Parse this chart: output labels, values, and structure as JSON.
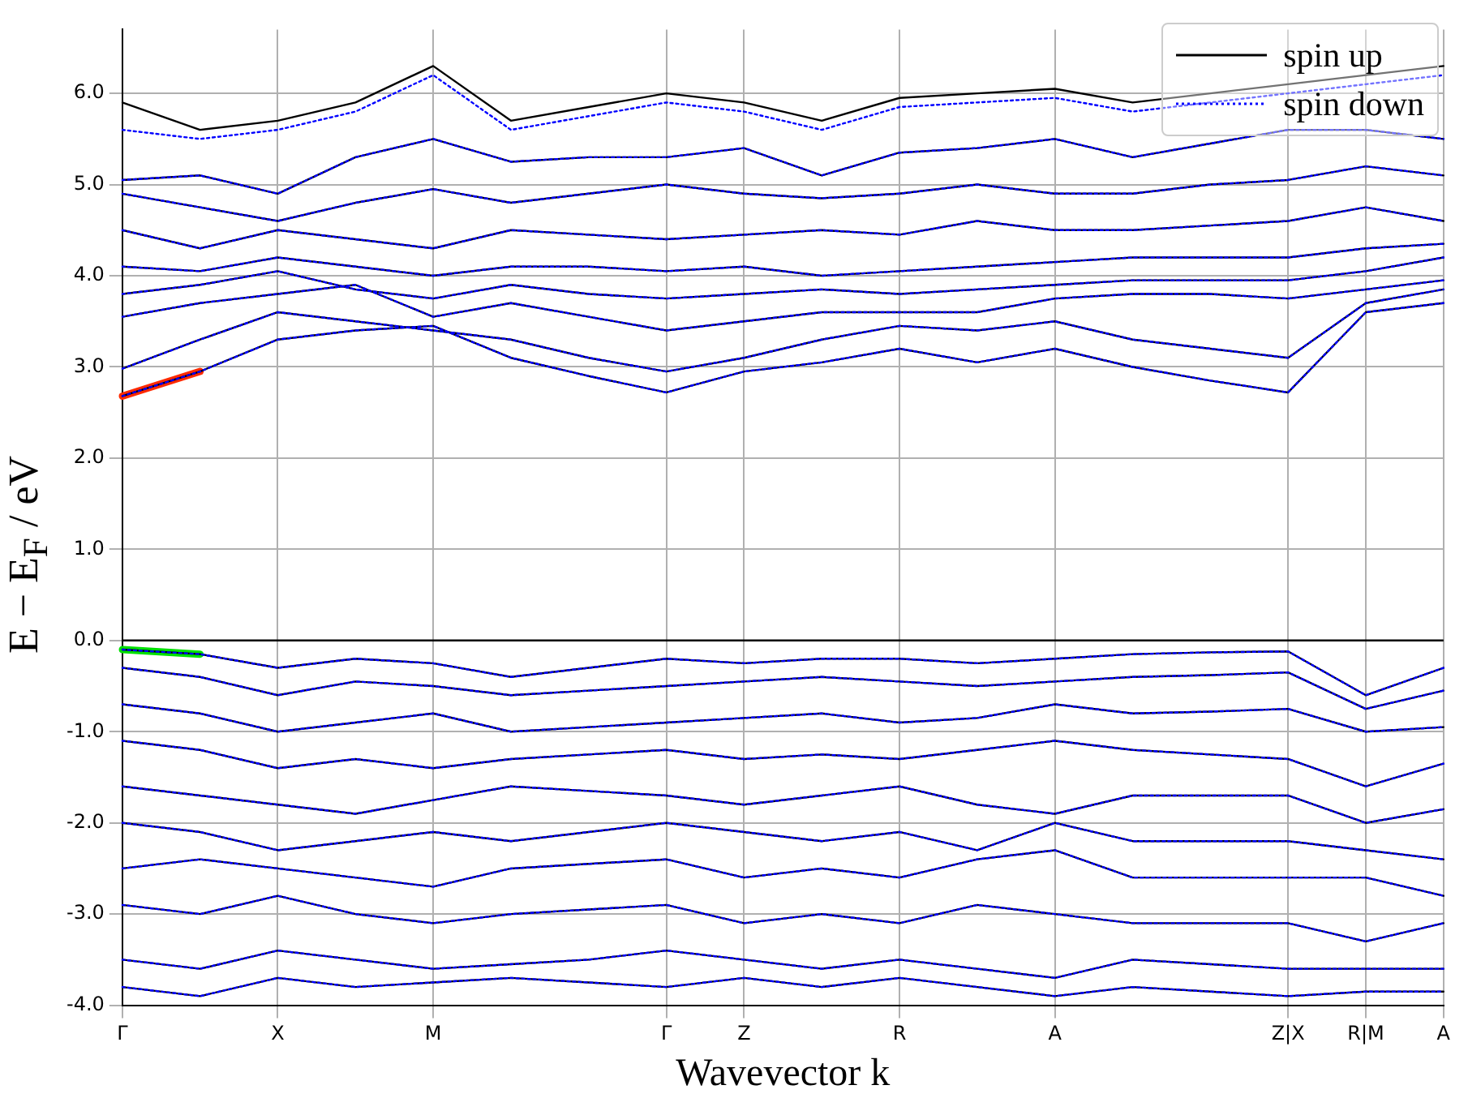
{
  "chart_data": {
    "type": "line",
    "xlabel": "Wavevector k",
    "ylabel": "E − E$_{F}$ / eV",
    "categories": [
      "Γ",
      null,
      "X",
      null,
      "M",
      null,
      null,
      "Γ",
      "Z",
      null,
      "R",
      null,
      "A",
      null,
      null,
      "Z|X",
      "R|M",
      "A"
    ],
    "ylim": [
      -4,
      6.7
    ],
    "yticks": [
      {
        "value": -4,
        "label": "-4.0"
      },
      {
        "value": -3,
        "label": "-3.0"
      },
      {
        "value": -2,
        "label": "-2.0"
      },
      {
        "value": -1,
        "label": "-1.0"
      },
      {
        "value": 0,
        "label": "0.0"
      },
      {
        "value": 1,
        "label": "1.0"
      },
      {
        "value": 2,
        "label": "2.0"
      },
      {
        "value": 3,
        "label": "3.0"
      },
      {
        "value": 4,
        "label": "4.0"
      },
      {
        "value": 5,
        "label": "5.0"
      },
      {
        "value": 6,
        "label": "6.0"
      }
    ],
    "grid": true,
    "legend": "top right",
    "marker": "none",
    "ref_lines": [
      {
        "axis": "y",
        "value": 0,
        "color": "#000000",
        "line_style": "solid"
      }
    ],
    "series": [
      {
        "name": "spin up",
        "color": "#000000",
        "line_style": "solid",
        "values": [
          2.68,
          2.95,
          3.3,
          3.4,
          3.45,
          3.1,
          2.9,
          2.72,
          2.95,
          3.05,
          3.2,
          3.05,
          3.2,
          3.0,
          2.85,
          2.72,
          3.6,
          3.7
        ]
      },
      {
        "color": "#000000",
        "line_style": "solid",
        "values": [
          2.98,
          3.3,
          3.6,
          3.5,
          3.4,
          3.3,
          3.1,
          2.95,
          3.1,
          3.3,
          3.45,
          3.4,
          3.5,
          3.3,
          3.2,
          3.1,
          3.7,
          3.85
        ]
      },
      {
        "color": "#000000",
        "line_style": "solid",
        "values": [
          3.55,
          3.7,
          3.8,
          3.9,
          3.55,
          3.7,
          3.55,
          3.4,
          3.5,
          3.6,
          3.6,
          3.6,
          3.75,
          3.8,
          3.8,
          3.75,
          3.85,
          3.95
        ]
      },
      {
        "color": "#000000",
        "line_style": "solid",
        "values": [
          3.8,
          3.9,
          4.05,
          3.85,
          3.75,
          3.9,
          3.8,
          3.75,
          3.8,
          3.85,
          3.8,
          3.85,
          3.9,
          3.95,
          3.95,
          3.95,
          4.05,
          4.2
        ]
      },
      {
        "color": "#000000",
        "line_style": "solid",
        "values": [
          4.1,
          4.05,
          4.2,
          4.1,
          4.0,
          4.1,
          4.1,
          4.05,
          4.1,
          4.0,
          4.05,
          4.1,
          4.15,
          4.2,
          4.2,
          4.2,
          4.3,
          4.35
        ]
      },
      {
        "color": "#000000",
        "line_style": "solid",
        "values": [
          4.5,
          4.3,
          4.5,
          4.4,
          4.3,
          4.5,
          4.45,
          4.4,
          4.45,
          4.5,
          4.45,
          4.6,
          4.5,
          4.5,
          4.55,
          4.6,
          4.75,
          4.6
        ]
      },
      {
        "color": "#000000",
        "line_style": "solid",
        "values": [
          4.9,
          4.75,
          4.6,
          4.8,
          4.95,
          4.8,
          4.9,
          5.0,
          4.9,
          4.85,
          4.9,
          5.0,
          4.9,
          4.9,
          5.0,
          5.05,
          5.2,
          5.1
        ]
      },
      {
        "color": "#000000",
        "line_style": "solid",
        "values": [
          5.05,
          5.1,
          4.9,
          5.3,
          5.5,
          5.25,
          5.3,
          5.3,
          5.4,
          5.1,
          5.35,
          5.4,
          5.5,
          5.3,
          5.45,
          5.6,
          5.6,
          5.5
        ]
      },
      {
        "color": "#000000",
        "line_style": "solid",
        "values": [
          5.9,
          5.6,
          5.7,
          5.9,
          6.3,
          5.7,
          5.85,
          6.0,
          5.9,
          5.7,
          5.95,
          6.0,
          6.05,
          5.9,
          6.0,
          6.1,
          6.2,
          6.3
        ]
      },
      {
        "color": "#000000",
        "line_style": "solid",
        "values": [
          -0.1,
          -0.15,
          -0.3,
          -0.2,
          -0.25,
          -0.4,
          -0.3,
          -0.2,
          -0.25,
          -0.2,
          -0.2,
          -0.25,
          -0.2,
          -0.15,
          -0.13,
          -0.12,
          -0.6,
          -0.3
        ]
      },
      {
        "color": "#000000",
        "line_style": "solid",
        "values": [
          -0.3,
          -0.4,
          -0.6,
          -0.45,
          -0.5,
          -0.6,
          -0.55,
          -0.5,
          -0.45,
          -0.4,
          -0.45,
          -0.5,
          -0.45,
          -0.4,
          -0.38,
          -0.35,
          -0.75,
          -0.55
        ]
      },
      {
        "color": "#000000",
        "line_style": "solid",
        "values": [
          -0.7,
          -0.8,
          -1.0,
          -0.9,
          -0.8,
          -1.0,
          -0.95,
          -0.9,
          -0.85,
          -0.8,
          -0.9,
          -0.85,
          -0.7,
          -0.8,
          -0.78,
          -0.75,
          -1.0,
          -0.95
        ]
      },
      {
        "color": "#000000",
        "line_style": "solid",
        "values": [
          -1.1,
          -1.2,
          -1.4,
          -1.3,
          -1.4,
          -1.3,
          -1.25,
          -1.2,
          -1.3,
          -1.25,
          -1.3,
          -1.2,
          -1.1,
          -1.2,
          -1.25,
          -1.3,
          -1.6,
          -1.35
        ]
      },
      {
        "color": "#000000",
        "line_style": "solid",
        "values": [
          -1.6,
          -1.7,
          -1.8,
          -1.9,
          -1.75,
          -1.6,
          -1.65,
          -1.7,
          -1.8,
          -1.7,
          -1.6,
          -1.8,
          -1.9,
          -1.7,
          -1.7,
          -1.7,
          -2.0,
          -1.85
        ]
      },
      {
        "color": "#000000",
        "line_style": "solid",
        "values": [
          -2.0,
          -2.1,
          -2.3,
          -2.2,
          -2.1,
          -2.2,
          -2.1,
          -2.0,
          -2.1,
          -2.2,
          -2.1,
          -2.3,
          -2.0,
          -2.2,
          -2.2,
          -2.2,
          -2.3,
          -2.4
        ]
      },
      {
        "color": "#000000",
        "line_style": "solid",
        "values": [
          -2.5,
          -2.4,
          -2.5,
          -2.6,
          -2.7,
          -2.5,
          -2.45,
          -2.4,
          -2.6,
          -2.5,
          -2.6,
          -2.4,
          -2.3,
          -2.6,
          -2.6,
          -2.6,
          -2.6,
          -2.8
        ]
      },
      {
        "color": "#000000",
        "line_style": "solid",
        "values": [
          -2.9,
          -3.0,
          -2.8,
          -3.0,
          -3.1,
          -3.0,
          -2.95,
          -2.9,
          -3.1,
          -3.0,
          -3.1,
          -2.9,
          -3.0,
          -3.1,
          -3.1,
          -3.1,
          -3.3,
          -3.1
        ]
      },
      {
        "color": "#000000",
        "line_style": "solid",
        "values": [
          -3.5,
          -3.6,
          -3.4,
          -3.5,
          -3.6,
          -3.55,
          -3.5,
          -3.4,
          -3.5,
          -3.6,
          -3.5,
          -3.6,
          -3.7,
          -3.5,
          -3.55,
          -3.6,
          -3.6,
          -3.6
        ]
      },
      {
        "color": "#000000",
        "line_style": "solid",
        "values": [
          -3.8,
          -3.9,
          -3.7,
          -3.8,
          -3.75,
          -3.7,
          -3.75,
          -3.8,
          -3.7,
          -3.8,
          -3.7,
          -3.8,
          -3.9,
          -3.8,
          -3.85,
          -3.9,
          -3.85,
          -3.85
        ]
      },
      {
        "name": "spin down",
        "color": "#0000ff",
        "line_style": "dotted",
        "values": [
          2.68,
          2.95,
          3.3,
          3.4,
          3.45,
          3.1,
          2.9,
          2.72,
          2.95,
          3.05,
          3.2,
          3.05,
          3.2,
          3.0,
          2.85,
          2.72,
          3.6,
          3.7
        ]
      },
      {
        "color": "#0000ff",
        "line_style": "dotted",
        "values": [
          2.98,
          3.3,
          3.6,
          3.5,
          3.4,
          3.3,
          3.1,
          2.95,
          3.1,
          3.3,
          3.45,
          3.4,
          3.5,
          3.3,
          3.2,
          3.1,
          3.7,
          3.85
        ]
      },
      {
        "color": "#0000ff",
        "line_style": "dotted",
        "values": [
          3.55,
          3.7,
          3.8,
          3.9,
          3.55,
          3.7,
          3.55,
          3.4,
          3.5,
          3.6,
          3.6,
          3.6,
          3.75,
          3.8,
          3.8,
          3.75,
          3.85,
          3.95
        ]
      },
      {
        "color": "#0000ff",
        "line_style": "dotted",
        "values": [
          3.8,
          3.9,
          4.05,
          3.85,
          3.75,
          3.9,
          3.8,
          3.75,
          3.8,
          3.85,
          3.8,
          3.85,
          3.9,
          3.95,
          3.95,
          3.95,
          4.05,
          4.2
        ]
      },
      {
        "color": "#0000ff",
        "line_style": "dotted",
        "values": [
          4.1,
          4.05,
          4.2,
          4.1,
          4.0,
          4.1,
          4.1,
          4.05,
          4.1,
          4.0,
          4.05,
          4.1,
          4.15,
          4.2,
          4.2,
          4.2,
          4.3,
          4.35
        ]
      },
      {
        "color": "#0000ff",
        "line_style": "dotted",
        "values": [
          4.5,
          4.3,
          4.5,
          4.4,
          4.3,
          4.5,
          4.45,
          4.4,
          4.45,
          4.5,
          4.45,
          4.6,
          4.5,
          4.5,
          4.55,
          4.6,
          4.75,
          4.6
        ]
      },
      {
        "color": "#0000ff",
        "line_style": "dotted",
        "values": [
          4.9,
          4.75,
          4.6,
          4.8,
          4.95,
          4.8,
          4.9,
          5.0,
          4.9,
          4.85,
          4.9,
          5.0,
          4.9,
          4.9,
          5.0,
          5.05,
          5.2,
          5.1
        ]
      },
      {
        "color": "#0000ff",
        "line_style": "dotted",
        "values": [
          5.05,
          5.1,
          4.9,
          5.3,
          5.5,
          5.25,
          5.3,
          5.3,
          5.4,
          5.1,
          5.35,
          5.4,
          5.5,
          5.3,
          5.45,
          5.6,
          5.6,
          5.5
        ]
      },
      {
        "color": "#0000ff",
        "line_style": "dotted",
        "values": [
          5.6,
          5.5,
          5.6,
          5.8,
          6.2,
          5.6,
          5.75,
          5.9,
          5.8,
          5.6,
          5.85,
          5.9,
          5.95,
          5.8,
          5.9,
          6.0,
          6.1,
          6.2
        ]
      },
      {
        "color": "#0000ff",
        "line_style": "dotted",
        "values": [
          -0.1,
          -0.15,
          -0.3,
          -0.2,
          -0.25,
          -0.4,
          -0.3,
          -0.2,
          -0.25,
          -0.2,
          -0.2,
          -0.25,
          -0.2,
          -0.15,
          -0.13,
          -0.12,
          -0.6,
          -0.3
        ]
      },
      {
        "color": "#0000ff",
        "line_style": "dotted",
        "values": [
          -0.3,
          -0.4,
          -0.6,
          -0.45,
          -0.5,
          -0.6,
          -0.55,
          -0.5,
          -0.45,
          -0.4,
          -0.45,
          -0.5,
          -0.45,
          -0.4,
          -0.38,
          -0.35,
          -0.75,
          -0.55
        ]
      },
      {
        "color": "#0000ff",
        "line_style": "dotted",
        "values": [
          -0.7,
          -0.8,
          -1.0,
          -0.9,
          -0.8,
          -1.0,
          -0.95,
          -0.9,
          -0.85,
          -0.8,
          -0.9,
          -0.85,
          -0.7,
          -0.8,
          -0.78,
          -0.75,
          -1.0,
          -0.95
        ]
      },
      {
        "color": "#0000ff",
        "line_style": "dotted",
        "values": [
          -1.1,
          -1.2,
          -1.4,
          -1.3,
          -1.4,
          -1.3,
          -1.25,
          -1.2,
          -1.3,
          -1.25,
          -1.3,
          -1.2,
          -1.1,
          -1.2,
          -1.25,
          -1.3,
          -1.6,
          -1.35
        ]
      },
      {
        "color": "#0000ff",
        "line_style": "dotted",
        "values": [
          -1.6,
          -1.7,
          -1.8,
          -1.9,
          -1.75,
          -1.6,
          -1.65,
          -1.7,
          -1.8,
          -1.7,
          -1.6,
          -1.8,
          -1.9,
          -1.7,
          -1.7,
          -1.7,
          -2.0,
          -1.85
        ]
      },
      {
        "color": "#0000ff",
        "line_style": "dotted",
        "values": [
          -2.0,
          -2.1,
          -2.3,
          -2.2,
          -2.1,
          -2.2,
          -2.1,
          -2.0,
          -2.1,
          -2.2,
          -2.1,
          -2.3,
          -2.0,
          -2.2,
          -2.2,
          -2.2,
          -2.3,
          -2.4
        ]
      },
      {
        "color": "#0000ff",
        "line_style": "dotted",
        "values": [
          -2.5,
          -2.4,
          -2.5,
          -2.6,
          -2.7,
          -2.5,
          -2.45,
          -2.4,
          -2.6,
          -2.5,
          -2.6,
          -2.4,
          -2.3,
          -2.6,
          -2.6,
          -2.6,
          -2.6,
          -2.8
        ]
      },
      {
        "color": "#0000ff",
        "line_style": "dotted",
        "values": [
          -2.9,
          -3.0,
          -2.8,
          -3.0,
          -3.1,
          -3.0,
          -2.95,
          -2.9,
          -3.1,
          -3.0,
          -3.1,
          -2.9,
          -3.0,
          -3.1,
          -3.1,
          -3.1,
          -3.3,
          -3.1
        ]
      },
      {
        "color": "#0000ff",
        "line_style": "dotted",
        "values": [
          -3.5,
          -3.6,
          -3.4,
          -3.5,
          -3.6,
          -3.55,
          -3.5,
          -3.4,
          -3.5,
          -3.6,
          -3.5,
          -3.6,
          -3.7,
          -3.5,
          -3.55,
          -3.6,
          -3.6,
          -3.6
        ]
      },
      {
        "color": "#0000ff",
        "line_style": "dotted",
        "values": [
          -3.8,
          -3.9,
          -3.7,
          -3.8,
          -3.75,
          -3.7,
          -3.75,
          -3.8,
          -3.7,
          -3.8,
          -3.7,
          -3.8,
          -3.9,
          -3.8,
          -3.85,
          -3.9,
          -3.85,
          -3.85
        ]
      },
      {
        "color": "#ff2a00",
        "line_style": "solid",
        "values": [
          2.68,
          2.95,
          null,
          null,
          null,
          null,
          null,
          null,
          null,
          null,
          null,
          null,
          null,
          null,
          null,
          null,
          null,
          null
        ]
      },
      {
        "color": "#00e000",
        "line_style": "solid",
        "values": [
          -0.1,
          -0.15,
          null,
          null,
          null,
          null,
          null,
          null,
          null,
          null,
          null,
          null,
          null,
          null,
          null,
          null,
          null,
          null
        ]
      }
    ]
  }
}
